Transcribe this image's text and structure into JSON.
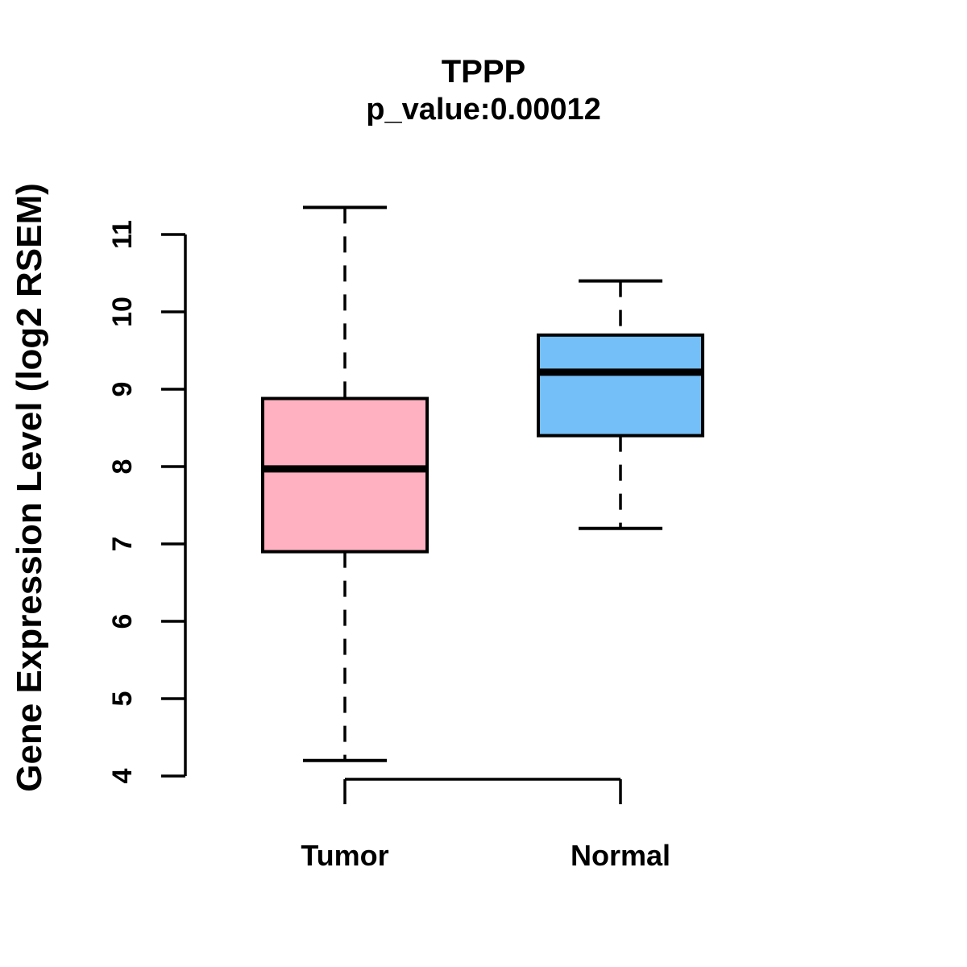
{
  "chart_data": {
    "type": "boxplot",
    "title": "TPPP",
    "subtitle": "p_value:0.00012",
    "ylabel": "Gene Expression Level (log2 RSEM)",
    "xlabel": "",
    "categories": [
      "Tumor",
      "Normal"
    ],
    "ylim": [
      4,
      11
    ],
    "yticks": [
      4,
      5,
      6,
      7,
      8,
      9,
      10,
      11
    ],
    "grid": false,
    "legend": "none",
    "series": [
      {
        "name": "Tumor",
        "color": "#FFB1C1",
        "whisker_low": 4.2,
        "q1": 6.9,
        "median": 7.97,
        "q3": 8.88,
        "whisker_high": 11.35
      },
      {
        "name": "Normal",
        "color": "#74BFF7",
        "whisker_low": 7.2,
        "q1": 8.4,
        "median": 9.22,
        "q3": 9.7,
        "whisker_high": 10.4
      }
    ],
    "colors": {
      "box_border": "#000000",
      "median": "#000000",
      "axis": "#000000",
      "text": "#000000"
    }
  }
}
